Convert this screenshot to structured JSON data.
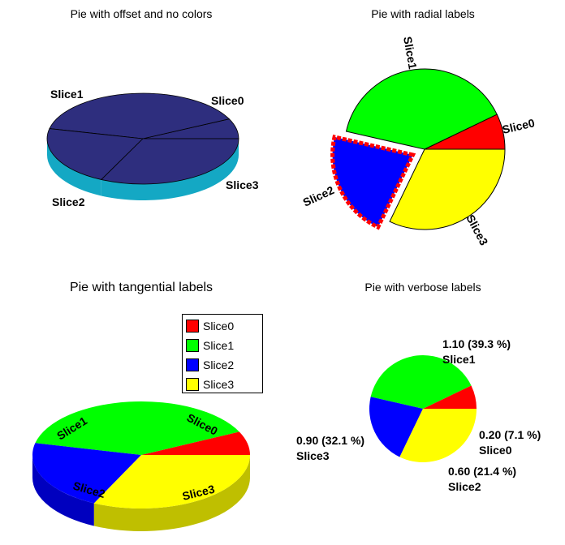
{
  "chart_data": [
    {
      "type": "pie",
      "title": "Pie with offset and no colors",
      "categories": [
        "Slice0",
        "Slice1",
        "Slice2",
        "Slice3"
      ],
      "values": [
        0.2,
        1.1,
        0.6,
        0.9
      ],
      "style": "3d",
      "colors": [
        "#2e2e7e",
        "#2e2e7e",
        "#2e2e7e",
        "#2e2e7e"
      ],
      "side_color": "#14a8c4",
      "labels": [
        "Slice0",
        "Slice1",
        "Slice2",
        "Slice3"
      ]
    },
    {
      "type": "pie",
      "title": "Pie with radial labels",
      "categories": [
        "Slice0",
        "Slice1",
        "Slice2",
        "Slice3"
      ],
      "values": [
        0.2,
        1.1,
        0.6,
        0.9
      ],
      "colors": [
        "#ff0000",
        "#00ff00",
        "#0000ff",
        "#ffff00"
      ],
      "exploded_slice": "Slice2",
      "labels": [
        "Slice0",
        "Slice1",
        "Slice2",
        "Slice3"
      ]
    },
    {
      "type": "pie",
      "title": "Pie with tangential labels",
      "categories": [
        "Slice0",
        "Slice1",
        "Slice2",
        "Slice3"
      ],
      "values": [
        0.2,
        1.1,
        0.6,
        0.9
      ],
      "style": "3d",
      "colors": [
        "#ff0000",
        "#00ff00",
        "#0000ff",
        "#ffff00"
      ],
      "labels": [
        "Slice0",
        "Slice1",
        "Slice2",
        "Slice3"
      ],
      "legend": [
        "Slice0",
        "Slice1",
        "Slice2",
        "Slice3"
      ],
      "legend_position": "top-right"
    },
    {
      "type": "pie",
      "title": "Pie with verbose labels",
      "categories": [
        "Slice0",
        "Slice1",
        "Slice2",
        "Slice3"
      ],
      "values": [
        0.2,
        1.1,
        0.6,
        0.9
      ],
      "colors": [
        "#ff0000",
        "#00ff00",
        "#0000ff",
        "#ffff00"
      ],
      "value_labels": [
        "0.20 (7.1 %)",
        "1.10 (39.3 %)",
        "0.60 (21.4 %)",
        "0.90 (32.1 %)"
      ],
      "labels": [
        "Slice0",
        "Slice1",
        "Slice2",
        "Slice3"
      ]
    }
  ]
}
